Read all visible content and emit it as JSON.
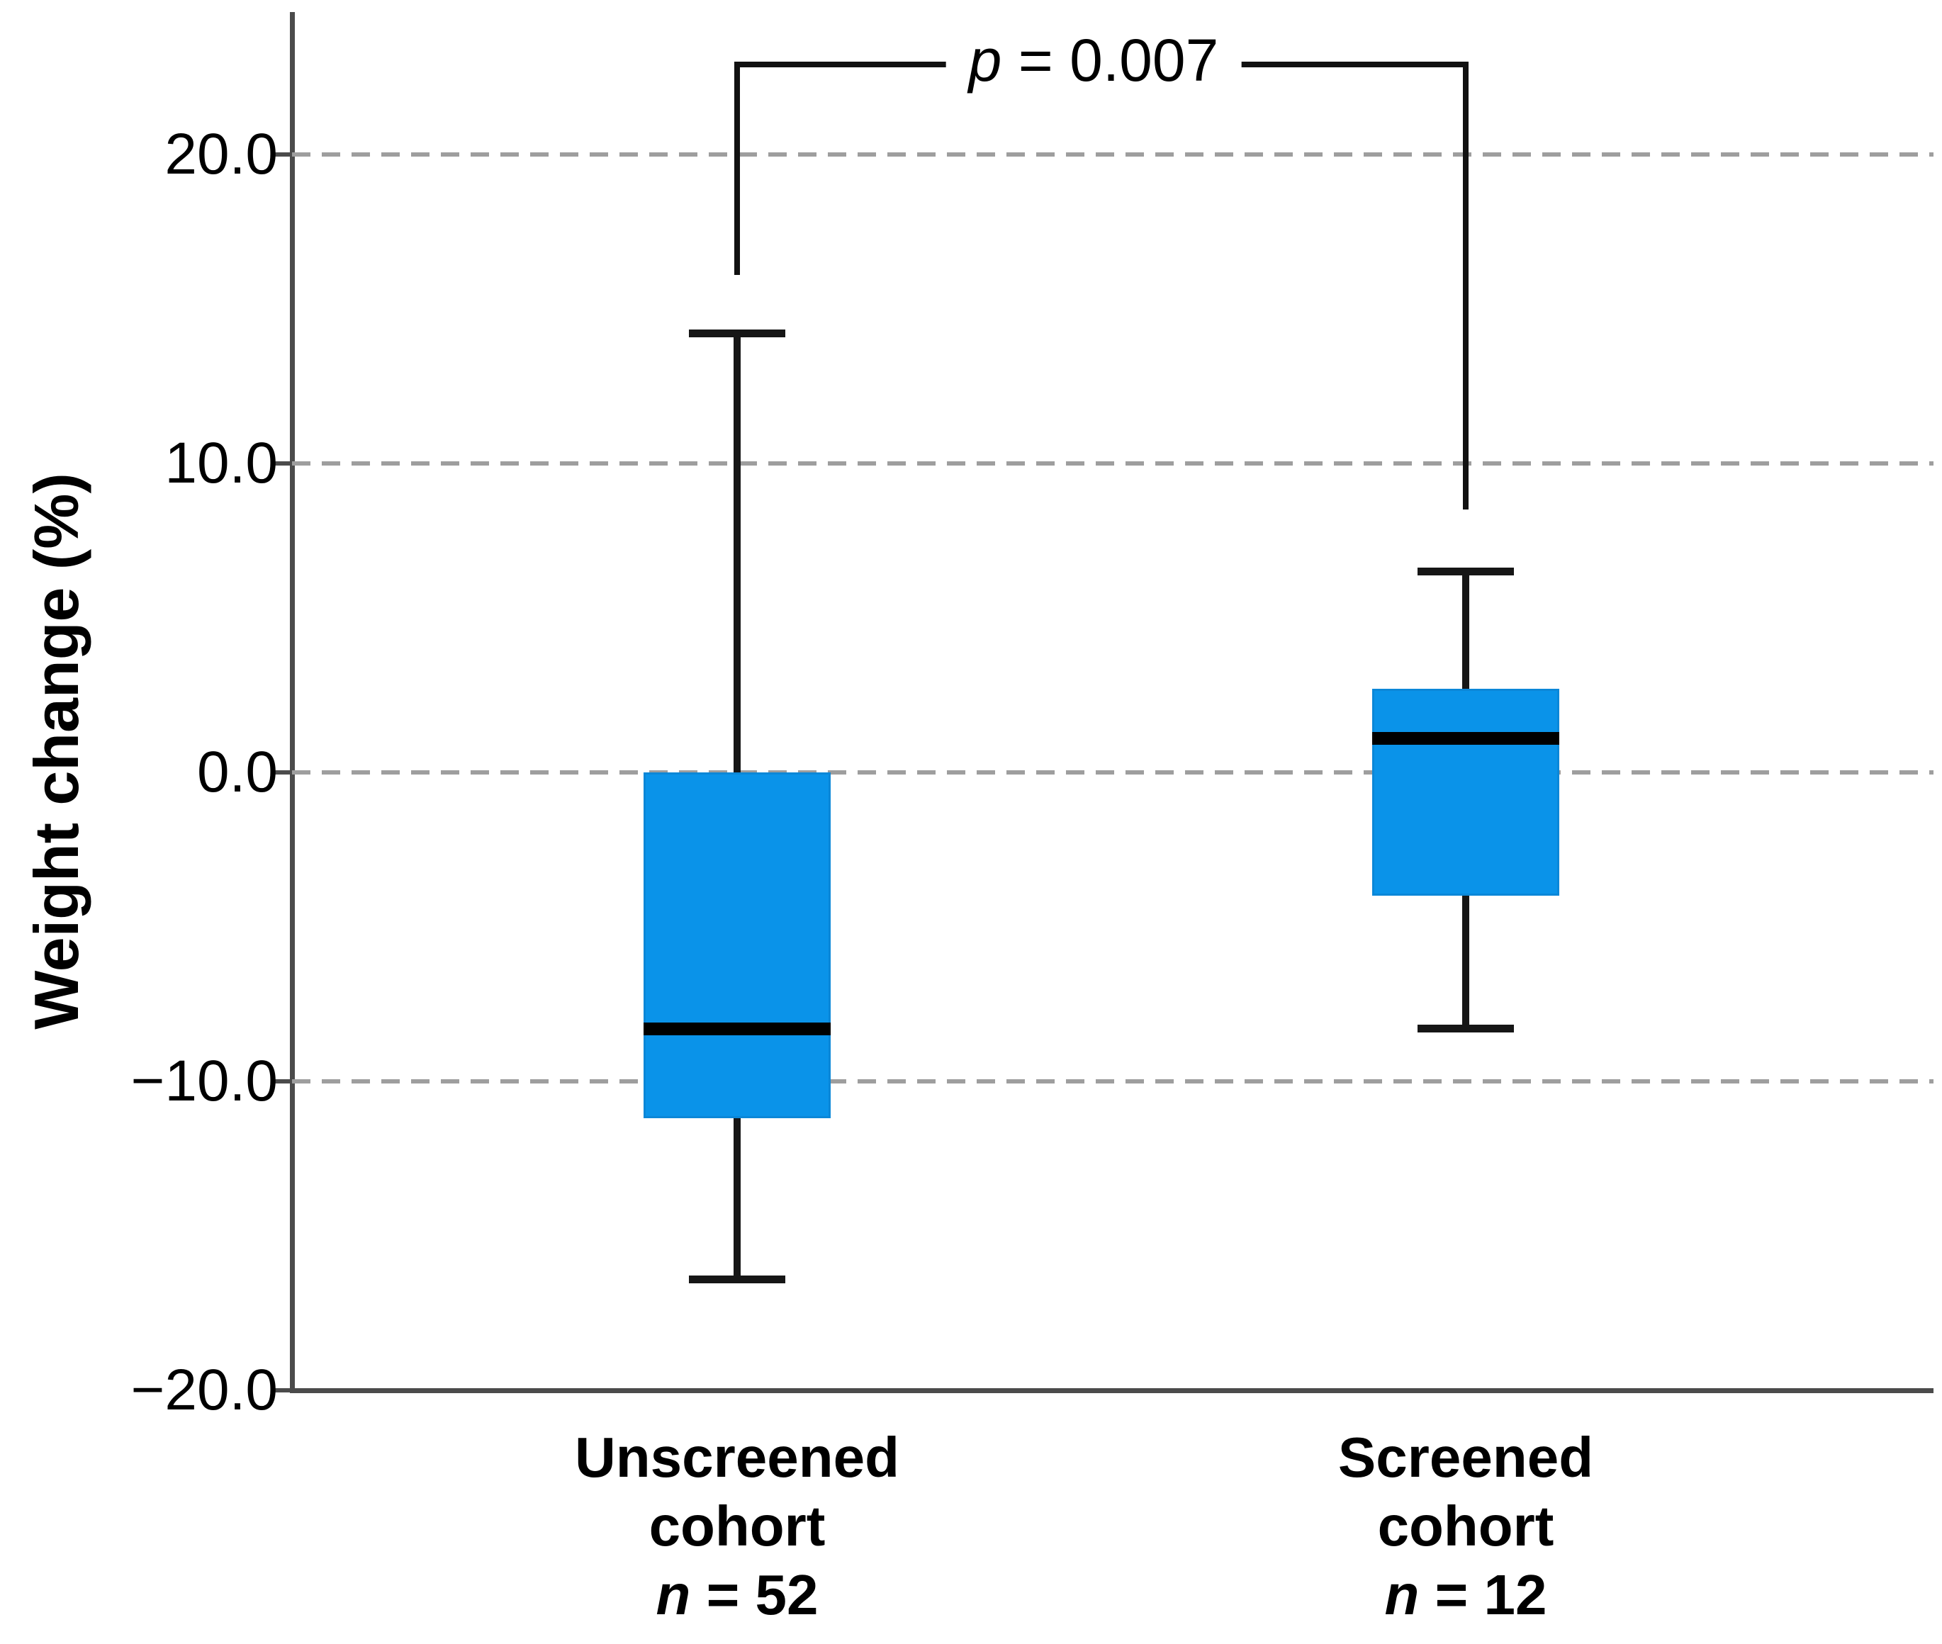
{
  "figure": {
    "background": "#ffffff"
  },
  "chart_data": {
    "type": "boxplot",
    "title": "",
    "xlabel": "",
    "ylabel": "Weight change (%)",
    "ylim": [
      -20,
      24.6
    ],
    "grid": "horizontal dashed",
    "yticks": [
      {
        "value": 20,
        "label": "20.0"
      },
      {
        "value": 10,
        "label": "10.0"
      },
      {
        "value": 0,
        "label": "0.0"
      },
      {
        "value": -10,
        "label": "−10.0"
      },
      {
        "value": -20,
        "label": "−20.0"
      }
    ],
    "gridline_values": [
      20,
      10,
      0,
      -10
    ],
    "groups": [
      {
        "name": "Unscreened cohort",
        "label_lines": [
          "Unscreened",
          "cohort"
        ],
        "n_italic": "n",
        "n_text": " = 52",
        "n": 52,
        "stats": {
          "whisker_low": -16.4,
          "q1": -11.2,
          "median": -8.3,
          "q3": 0.0,
          "whisker_high": 14.2
        }
      },
      {
        "name": "Screened cohort",
        "label_lines": [
          "Screened",
          "cohort"
        ],
        "n_italic": "n",
        "n_text": " = 12",
        "n": 12,
        "stats": {
          "whisker_low": -8.3,
          "q1": -4.0,
          "median": 1.1,
          "q3": 2.7,
          "whisker_high": 6.5
        }
      }
    ],
    "annotation": {
      "label": "p = 0.007",
      "p_italic": "p",
      "p_text": " = 0.007",
      "bracket": {
        "top_value": 23.0,
        "left_end_value": 16.1,
        "right_end_value": 8.5
      }
    },
    "colors": {
      "box_fill": "#0a93e9",
      "box_border": "#0b87d8",
      "median_line": "#000000",
      "whisker": "#161616",
      "gridline": "#9e9e9e",
      "axis": "#4b4b4b",
      "text": "#000000",
      "background": "#ffffff"
    }
  }
}
